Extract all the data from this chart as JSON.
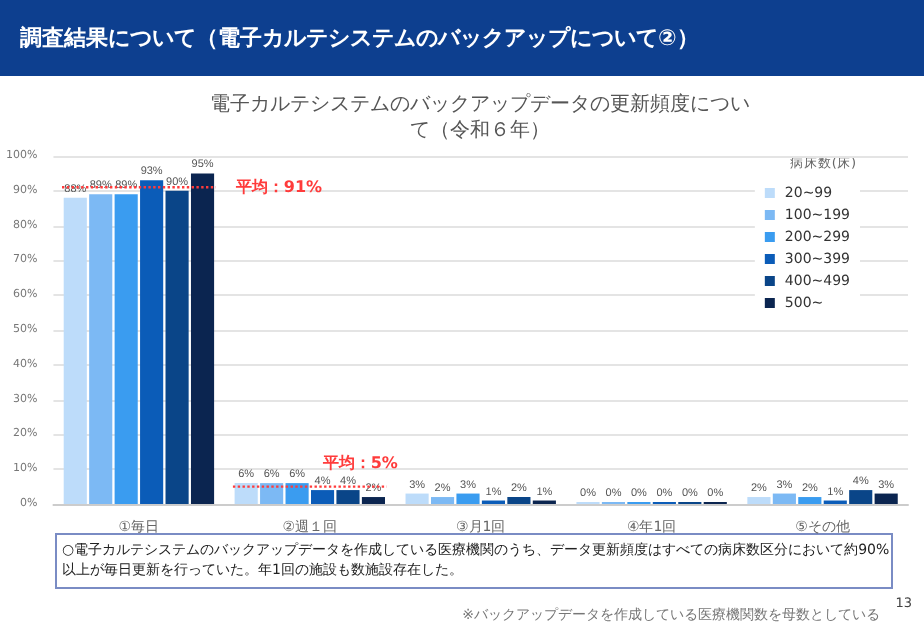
{
  "chart_data": {
    "type": "bar",
    "title": "調査結果について（電子カルテシステムのバックアップについて②）",
    "subtitle": "電子カルテシステムのバックアップデータの更新頻度について（令和６年）",
    "categories": [
      "①毎日",
      "②週１回",
      "③月1回",
      "④年1回",
      "⑤その他"
    ],
    "series": [
      {
        "name": "20~99",
        "color": "#bddcfa",
        "values": [
          88,
          6,
          3,
          0,
          2
        ],
        "value_labels": [
          "88%",
          "6%",
          "3%",
          "0%",
          "2%"
        ]
      },
      {
        "name": "100~199",
        "color": "#7cb9f4",
        "values": [
          89,
          6,
          2,
          0,
          3
        ],
        "value_labels": [
          "89%",
          "6%",
          "2%",
          "0%",
          "3%"
        ]
      },
      {
        "name": "200~299",
        "color": "#3a9cf0",
        "values": [
          89,
          6,
          3,
          0,
          2
        ],
        "value_labels": [
          "89%",
          "6%",
          "3%",
          "0%",
          "2%"
        ]
      },
      {
        "name": "300~399",
        "color": "#0b5cb8",
        "values": [
          93,
          4,
          1,
          0,
          1
        ],
        "value_labels": [
          "93%",
          "4%",
          "1%",
          "0%",
          "1%"
        ]
      },
      {
        "name": "400~499",
        "color": "#0a4588",
        "values": [
          90,
          4,
          2,
          0,
          4
        ],
        "value_labels": [
          "90%",
          "4%",
          "2%",
          "0%",
          "4%"
        ]
      },
      {
        "name": "500~",
        "color": "#0b2550",
        "values": [
          95,
          2,
          1,
          0,
          3
        ],
        "value_labels": [
          "95%",
          "2%",
          "1%",
          "0%",
          "3%"
        ]
      }
    ],
    "legend_title": "病床数(床)",
    "legend": "top right",
    "ylim": [
      0,
      100
    ],
    "yticks": [
      {
        "value": 0,
        "label": "0%"
      },
      {
        "value": 10,
        "label": "10%"
      },
      {
        "value": 20,
        "label": "20%"
      },
      {
        "value": 30,
        "label": "30%"
      },
      {
        "value": 40,
        "label": "40%"
      },
      {
        "value": 50,
        "label": "50%"
      },
      {
        "value": 60,
        "label": "60%"
      },
      {
        "value": 70,
        "label": "70%"
      },
      {
        "value": 80,
        "label": "80%"
      },
      {
        "value": 90,
        "label": "90%"
      },
      {
        "value": 100,
        "label": "100%"
      }
    ],
    "grid": "y",
    "ref_lines": [
      {
        "axis": "y",
        "value": 91,
        "label": "平均：91%",
        "color": "#ff3b3b",
        "line_style": "dotted"
      },
      {
        "axis": "y",
        "value": 5,
        "label": "平均：5%",
        "color": "#ff3b3b",
        "line_style": "dotted"
      }
    ],
    "annotations": [
      "○電子カルテシステムのバックアップデータを作成している医療機関のうち、データ更新頻度はすべての病床数区分において約90%以上が毎日更新を行っていた。年1回の施設も数施設存在した。",
      "※バックアップデータを作成している医療機関数を母数としている",
      "13"
    ]
  }
}
